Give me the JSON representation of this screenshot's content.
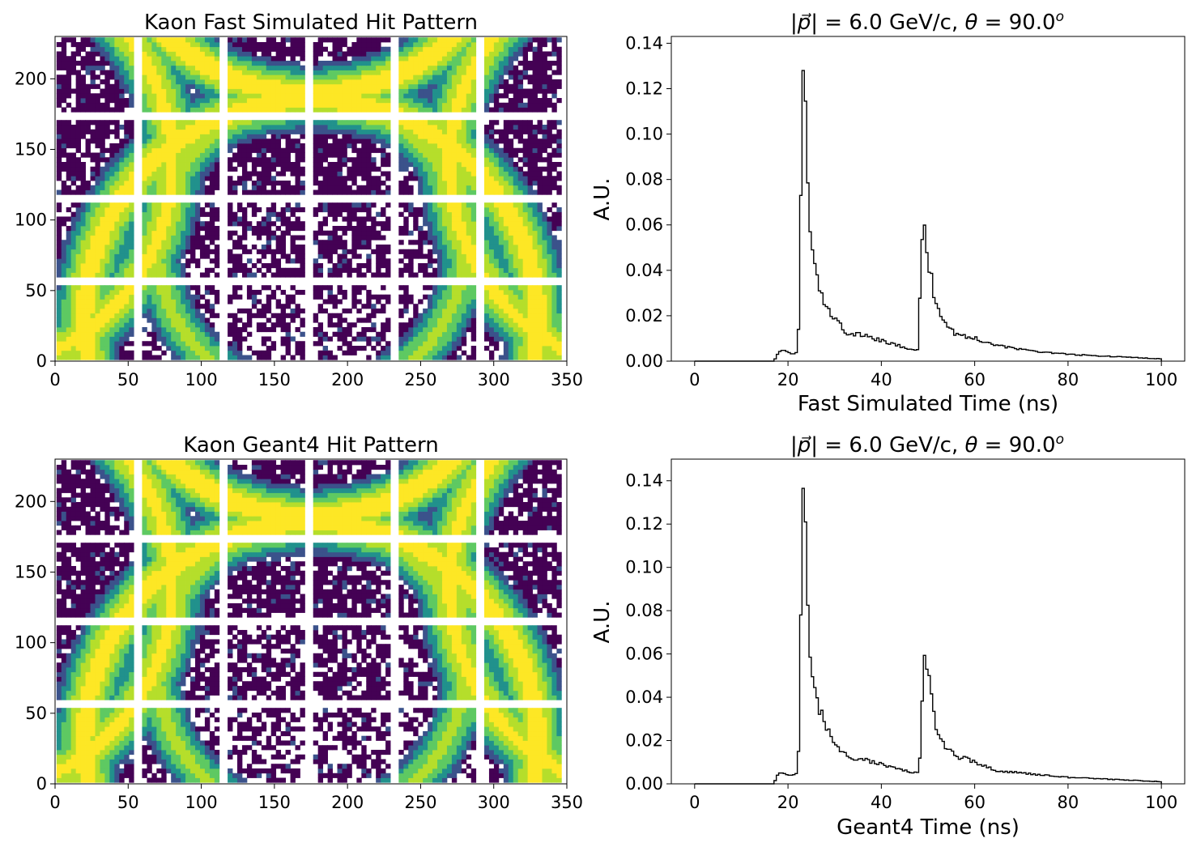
{
  "chart_data": [
    {
      "type": "heatmap",
      "title": "Kaon Fast Simulated Hit Pattern",
      "xlim": [
        0,
        350
      ],
      "ylim": [
        0,
        230
      ],
      "xticks": [
        "0",
        "50",
        "100",
        "150",
        "200",
        "250",
        "300",
        "350"
      ],
      "yticks": [
        "0",
        "50",
        "100",
        "150",
        "200"
      ],
      "colormap": "viridis",
      "pixel_grid": {
        "cols": 6,
        "rows": 4,
        "pixels_per_tile": 16,
        "pixel_size_mm": 3.3
      }
    },
    {
      "type": "line",
      "title": "|p| = 6.0 GeV/c, θ = 90.0°",
      "xlabel": "Fast Simulated Time (ns)",
      "ylabel": "A.U.",
      "xlim": [
        -5,
        105
      ],
      "ylim": [
        0,
        0.143
      ],
      "xticks": [
        "0",
        "20",
        "40",
        "60",
        "80",
        "100"
      ],
      "yticks": [
        "0.00",
        "0.02",
        "0.04",
        "0.06",
        "0.08",
        "0.10",
        "0.12",
        "0.14"
      ],
      "bin_width": 0.5,
      "series": [
        {
          "x": [
            0,
            17,
            17.5,
            18,
            19,
            20,
            21,
            22,
            22.5,
            23,
            23.5,
            24,
            24.5,
            25,
            26,
            27,
            28,
            30,
            32,
            33,
            35,
            40,
            45,
            48,
            48.5,
            49,
            49.5,
            50,
            51,
            52,
            54,
            56,
            60,
            65,
            70,
            80,
            90,
            100
          ],
          "y": [
            0,
            0,
            0.002,
            0.004,
            0.005,
            0.004,
            0.003,
            0.004,
            0.024,
            0.122,
            0.134,
            0.095,
            0.062,
            0.052,
            0.04,
            0.032,
            0.025,
            0.019,
            0.014,
            0.011,
            0.012,
            0.009,
            0.006,
            0.005,
            0.047,
            0.057,
            0.053,
            0.043,
            0.033,
            0.024,
            0.016,
            0.012,
            0.01,
            0.007,
            0.005,
            0.003,
            0.002,
            0.001
          ]
        }
      ]
    },
    {
      "type": "heatmap",
      "title": "Kaon Geant4 Hit Pattern",
      "xlim": [
        0,
        350
      ],
      "ylim": [
        0,
        230
      ],
      "xticks": [
        "0",
        "50",
        "100",
        "150",
        "200",
        "250",
        "300",
        "350"
      ],
      "yticks": [
        "0",
        "50",
        "100",
        "150",
        "200"
      ],
      "colormap": "viridis",
      "pixel_grid": {
        "cols": 6,
        "rows": 4,
        "pixels_per_tile": 16,
        "pixel_size_mm": 3.3
      }
    },
    {
      "type": "line",
      "title": "|p| = 6.0 GeV/c, θ = 90.0°",
      "xlabel": "Geant4 Time (ns)",
      "ylabel": "A.U.",
      "xlim": [
        -5,
        105
      ],
      "ylim": [
        0,
        0.15
      ],
      "xticks": [
        "0",
        "20",
        "40",
        "60",
        "80",
        "100"
      ],
      "yticks": [
        "0.00",
        "0.02",
        "0.04",
        "0.06",
        "0.08",
        "0.10",
        "0.12",
        "0.14"
      ],
      "bin_width": 0.5,
      "series": [
        {
          "x": [
            0,
            17,
            17.5,
            18,
            19,
            20,
            21,
            22,
            22.5,
            23,
            23.5,
            24,
            24.5,
            25,
            26,
            27,
            28,
            30,
            32,
            33,
            35,
            40,
            45,
            48,
            48.5,
            49,
            49.5,
            50,
            51,
            52,
            54,
            56,
            60,
            65,
            70,
            80,
            90,
            100
          ],
          "y": [
            0,
            0,
            0.003,
            0.005,
            0.005,
            0.004,
            0.004,
            0.005,
            0.025,
            0.131,
            0.142,
            0.1,
            0.065,
            0.052,
            0.042,
            0.033,
            0.026,
            0.019,
            0.014,
            0.012,
            0.012,
            0.009,
            0.006,
            0.005,
            0.021,
            0.062,
            0.066,
            0.05,
            0.035,
            0.025,
            0.016,
            0.013,
            0.01,
            0.006,
            0.005,
            0.003,
            0.002,
            0.001
          ]
        }
      ]
    }
  ]
}
